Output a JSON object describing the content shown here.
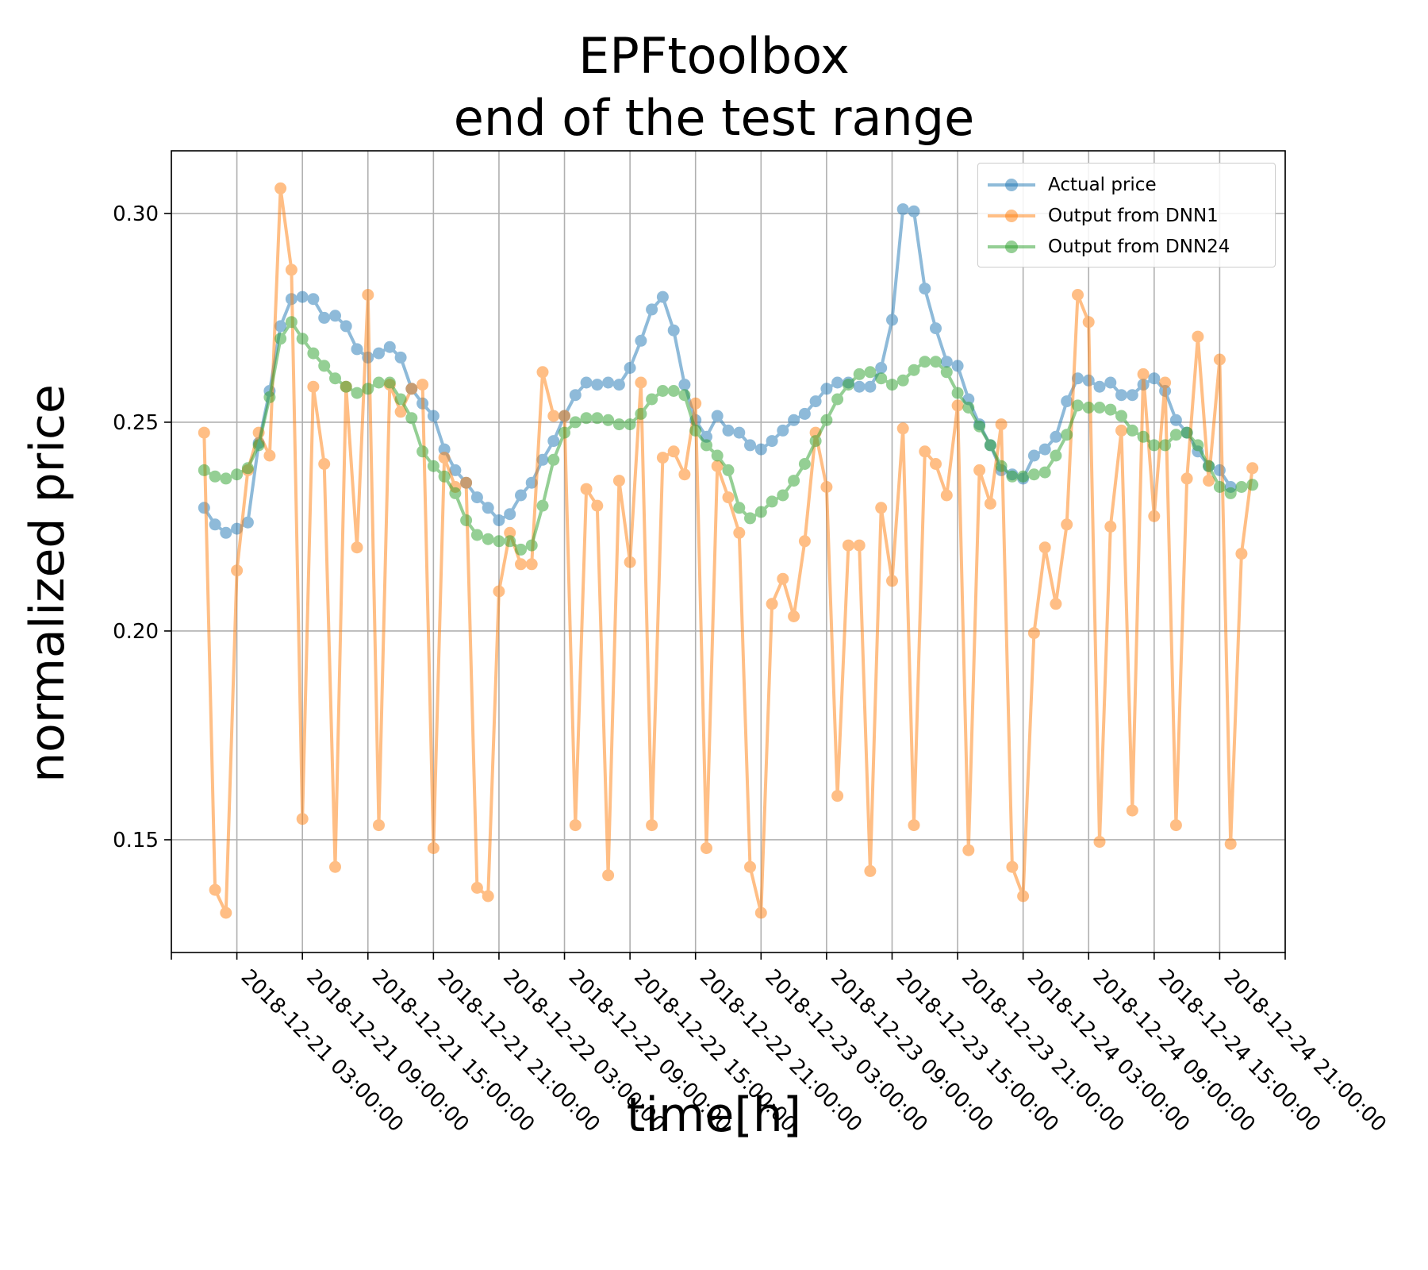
{
  "title_line1": "EPFtoolbox",
  "title_line2": "end of the test range",
  "chart_data": {
    "type": "line",
    "title": "EPFtoolbox end of the test range",
    "xlabel": "time[h]",
    "ylabel": "normalized price",
    "x_start": "2018-12-21 00:00:00",
    "x_step_hours": 1,
    "xlim_hours": [
      -3,
      99
    ],
    "ylim": [
      0.123,
      0.315
    ],
    "x_tick_hours": [
      3,
      9,
      15,
      21,
      27,
      33,
      39,
      45,
      51,
      57,
      63,
      69,
      75,
      81,
      87,
      93
    ],
    "x_tick_labels": [
      "2018-12-21 03:00:00",
      "2018-12-21 09:00:00",
      "2018-12-21 15:00:00",
      "2018-12-21 21:00:00",
      "2018-12-22 03:00:00",
      "2018-12-22 09:00:00",
      "2018-12-22 15:00:00",
      "2018-12-22 21:00:00",
      "2018-12-23 03:00:00",
      "2018-12-23 09:00:00",
      "2018-12-23 15:00:00",
      "2018-12-23 21:00:00",
      "2018-12-24 03:00:00",
      "2018-12-24 09:00:00",
      "2018-12-24 15:00:00",
      "2018-12-24 21:00:00"
    ],
    "y_ticks": [
      0.15,
      0.2,
      0.25,
      0.3
    ],
    "y_tick_labels": [
      "0.15",
      "0.20",
      "0.25",
      "0.30"
    ],
    "grid": true,
    "legend_position": "top-right",
    "series": [
      {
        "name": "Actual price",
        "color": "#1f77b4",
        "values": [
          0.2295,
          0.2255,
          0.2235,
          0.2245,
          0.226,
          0.245,
          0.2575,
          0.273,
          0.2795,
          0.28,
          0.2795,
          0.275,
          0.2755,
          0.273,
          0.2675,
          0.2655,
          0.2665,
          0.268,
          0.2655,
          0.258,
          0.2545,
          0.2515,
          0.2435,
          0.2385,
          0.2355,
          0.232,
          0.2295,
          0.2265,
          0.228,
          0.2325,
          0.2355,
          0.241,
          0.2455,
          0.2515,
          0.2565,
          0.2595,
          0.259,
          0.2595,
          0.259,
          0.263,
          0.2695,
          0.277,
          0.28,
          0.272,
          0.259,
          0.2505,
          0.2465,
          0.2515,
          0.248,
          0.2475,
          0.2445,
          0.2435,
          0.2455,
          0.248,
          0.2505,
          0.252,
          0.255,
          0.258,
          0.2595,
          0.2595,
          0.2585,
          0.2585,
          0.263,
          0.2745,
          0.301,
          0.3005,
          0.282,
          0.2725,
          0.2645,
          0.2635,
          0.2555,
          0.2495,
          0.2445,
          0.2385,
          0.2375,
          0.2365,
          0.242,
          0.2435,
          0.2465,
          0.255,
          0.2605,
          0.26,
          0.2585,
          0.2595,
          0.2565,
          0.2565,
          0.259,
          0.2605,
          0.2575,
          0.2505,
          0.2475,
          0.243,
          0.2395,
          0.2385,
          0.2345
        ]
      },
      {
        "name": "Output from DNN1",
        "color": "#ff7f0e",
        "values": [
          0.2475,
          0.138,
          0.1325,
          0.2145,
          0.2385,
          0.2475,
          0.242,
          0.306,
          0.2865,
          0.155,
          0.2585,
          0.24,
          0.1435,
          0.2585,
          0.22,
          0.2805,
          0.1535,
          0.259,
          0.2525,
          0.258,
          0.259,
          0.148,
          0.2415,
          0.2345,
          0.2355,
          0.1385,
          0.1365,
          0.2095,
          0.2235,
          0.216,
          0.216,
          0.262,
          0.2515,
          0.2515,
          0.1535,
          0.234,
          0.23,
          0.1415,
          0.236,
          0.2165,
          0.2595,
          0.1535,
          0.2415,
          0.243,
          0.2375,
          0.2545,
          0.148,
          0.2395,
          0.232,
          0.2235,
          0.1435,
          0.1325,
          0.2065,
          0.2125,
          0.2035,
          0.2215,
          0.2475,
          0.2345,
          0.1605,
          0.2205,
          0.2205,
          0.1425,
          0.2295,
          0.212,
          0.2485,
          0.1535,
          0.243,
          0.24,
          0.2325,
          0.254,
          0.1475,
          0.2385,
          0.2305,
          0.2495,
          0.1435,
          0.1365,
          0.1995,
          0.22,
          0.2065,
          0.2255,
          0.2805,
          0.274,
          0.1495,
          0.225,
          0.248,
          0.157,
          0.2615,
          0.2275,
          0.2595,
          0.1535,
          0.2365,
          0.2705,
          0.236,
          0.265,
          0.149,
          0.2185,
          0.239
        ]
      },
      {
        "name": "Output from DNN24",
        "color": "#2ca02c",
        "values": [
          0.2385,
          0.237,
          0.2365,
          0.2375,
          0.239,
          0.2445,
          0.256,
          0.27,
          0.274,
          0.27,
          0.2665,
          0.2635,
          0.2605,
          0.2585,
          0.257,
          0.258,
          0.2595,
          0.2595,
          0.2555,
          0.251,
          0.243,
          0.2395,
          0.237,
          0.233,
          0.2265,
          0.223,
          0.222,
          0.2215,
          0.2215,
          0.2195,
          0.2205,
          0.23,
          0.241,
          0.2475,
          0.25,
          0.251,
          0.251,
          0.2505,
          0.2495,
          0.2495,
          0.252,
          0.2555,
          0.2575,
          0.2575,
          0.2565,
          0.248,
          0.2445,
          0.242,
          0.2385,
          0.2295,
          0.227,
          0.2285,
          0.231,
          0.2325,
          0.236,
          0.24,
          0.2455,
          0.2505,
          0.2555,
          0.259,
          0.2615,
          0.262,
          0.2605,
          0.259,
          0.26,
          0.2625,
          0.2645,
          0.2645,
          0.262,
          0.257,
          0.2535,
          0.249,
          0.2445,
          0.2395,
          0.237,
          0.237,
          0.2375,
          0.238,
          0.242,
          0.247,
          0.254,
          0.2535,
          0.2535,
          0.253,
          0.2515,
          0.248,
          0.2465,
          0.2445,
          0.2445,
          0.247,
          0.2475,
          0.2445,
          0.2395,
          0.2345,
          0.233,
          0.2345,
          0.235
        ]
      }
    ]
  }
}
